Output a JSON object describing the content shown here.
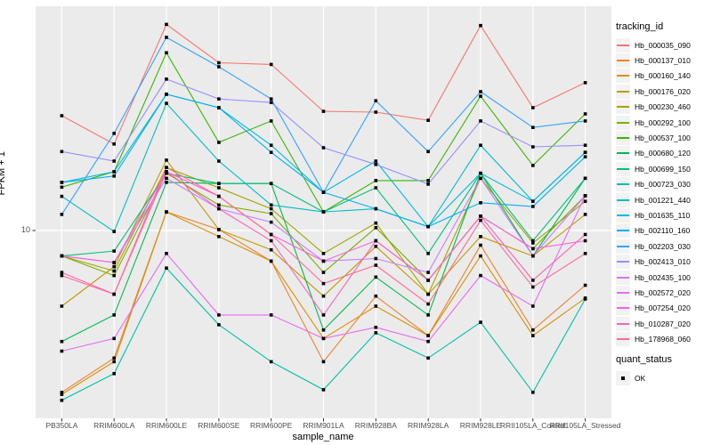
{
  "figure": {
    "y_tick_label": "10",
    "style": {
      "panel_bg": "#EBEBEB",
      "gridline": "#FFFFFF",
      "tick_color": "#333333",
      "tick_text_color": "#4D4D4D",
      "marker_color": "#000000",
      "legend_key_bg": "#F2F2F2"
    }
  },
  "legend": {
    "tracking_title": "tracking_id",
    "quant_title": "quant_status",
    "quant_items": [
      {
        "label": "OK"
      }
    ]
  },
  "chart_data": {
    "type": "line",
    "title": "",
    "xlabel": "sample_name",
    "ylabel": "FPKM + 1",
    "y_scale": "log10",
    "y_ticks": [
      10
    ],
    "ylim": [
      1.6,
      95
    ],
    "grid": "major",
    "marker": "black-square",
    "legend_position": "right",
    "x": [
      "PB350LA",
      "RRIM600LA",
      "RRIM600LE",
      "RRIM600SE",
      "RRIM600PE",
      "RRIM901LA",
      "RRIM928BA",
      "RRIM928LA",
      "RRIM928LE",
      "RRII105LA_Control",
      "RRII105LA_Stressed"
    ],
    "series": [
      {
        "name": "Hb_000035_090",
        "color": "#F8766D",
        "values": [
          32.5,
          24.3,
          83,
          56,
          55,
          34,
          33.7,
          31,
          82,
          35.3,
          45.6
        ]
      },
      {
        "name": "Hb_000137_010",
        "color": "#EA8331",
        "values": [
          1.9,
          2.7,
          12.1,
          10.1,
          7.3,
          2.6,
          5.1,
          3.4,
          8.6,
          3.6,
          5.7
        ]
      },
      {
        "name": "Hb_000160_140",
        "color": "#D89000",
        "values": [
          1.86,
          2.6,
          12.1,
          9.4,
          7.3,
          3.3,
          4.6,
          3.4,
          7.7,
          3.4,
          5.0
        ]
      },
      {
        "name": "Hb_000176_020",
        "color": "#C09B00",
        "values": [
          4.6,
          6.9,
          20.6,
          10.1,
          8.2,
          5.1,
          8.5,
          5.2,
          9.4,
          7.7,
          11.8
        ]
      },
      {
        "name": "Hb_000230_460",
        "color": "#A3A500",
        "values": [
          7.7,
          6.6,
          19.1,
          15.5,
          12.5,
          7.9,
          10.8,
          5.2,
          17.1,
          8.8,
          13.5
        ]
      },
      {
        "name": "Hb_000292_100",
        "color": "#7CAE00",
        "values": [
          7.7,
          6.3,
          18,
          13,
          11.9,
          6.5,
          10.3,
          6,
          11.6,
          8.3,
          14.3
        ]
      },
      {
        "name": "Hb_000537_100",
        "color": "#39B600",
        "values": [
          15.6,
          18.3,
          62,
          24.7,
          30.8,
          12.1,
          16.7,
          16.7,
          39.7,
          19.5,
          33.1
        ]
      },
      {
        "name": "Hb_000680_120",
        "color": "#00BB4E",
        "values": [
          3.2,
          4.2,
          16.4,
          16.2,
          16.2,
          3.6,
          6.2,
          4.2,
          18,
          7.7,
          17.1
        ]
      },
      {
        "name": "Hb_000699_150",
        "color": "#00BF7D",
        "values": [
          7.7,
          8.1,
          18,
          16.2,
          16.2,
          12.1,
          15.5,
          7.9,
          18,
          9,
          17.1
        ]
      },
      {
        "name": "Hb_000723_030",
        "color": "#00C1A3",
        "values": [
          1.75,
          2.3,
          6.8,
          3.8,
          2.6,
          1.95,
          3.5,
          2.7,
          3.9,
          1.9,
          4.95
        ]
      },
      {
        "name": "Hb_001221_440",
        "color": "#00BFC4",
        "values": [
          14.2,
          9.9,
          36.9,
          20.4,
          13,
          12.1,
          12.5,
          10.4,
          24,
          13.5,
          22.3
        ]
      },
      {
        "name": "Hb_001635_110",
        "color": "#00BAE0",
        "values": [
          16.4,
          18.3,
          40.5,
          35.3,
          24,
          14.8,
          20.4,
          10.4,
          18,
          13.5,
          22.3
        ]
      },
      {
        "name": "Hb_002110_160",
        "color": "#00B0F6",
        "values": [
          16.4,
          17.5,
          40.5,
          35.3,
          22.3,
          14.8,
          12.5,
          10.4,
          13.3,
          12.8,
          21.3
        ]
      },
      {
        "name": "Hb_002203_030",
        "color": "#35A2FF",
        "values": [
          11.8,
          27.1,
          72.6,
          53.7,
          38.6,
          14.8,
          37.9,
          22.5,
          41.6,
          28.8,
          30.8
        ]
      },
      {
        "name": "Hb_002413_010",
        "color": "#9590FF",
        "values": [
          22.5,
          20.4,
          47.3,
          38.6,
          37.2,
          23.4,
          19.7,
          16.1,
          30.8,
          23.6,
          24
        ]
      },
      {
        "name": "Hb_002435_100",
        "color": "#C77CFF",
        "values": [
          7.7,
          7.2,
          17.1,
          12.5,
          10.9,
          7.3,
          7.5,
          6.5,
          17.1,
          7.7,
          14.3
        ]
      },
      {
        "name": "Hb_002572_020",
        "color": "#E76BF3",
        "values": [
          2.9,
          3.3,
          7.9,
          4.2,
          4.2,
          3.3,
          3.7,
          3.2,
          6.3,
          4.6,
          14.3
        ]
      },
      {
        "name": "Hb_007254_020",
        "color": "#FA62DB",
        "values": [
          7.7,
          7.2,
          18.3,
          14.2,
          9.6,
          7.3,
          9,
          6,
          11.6,
          8.3,
          9
        ]
      },
      {
        "name": "Hb_010287_020",
        "color": "#FF62BC",
        "values": [
          6.5,
          5.2,
          18.3,
          12.5,
          9,
          4.2,
          9,
          6,
          11.6,
          6,
          9.6
        ]
      },
      {
        "name": "Hb_178968_060",
        "color": "#FF6A98",
        "values": [
          6.3,
          5.2,
          19.1,
          14.2,
          9.6,
          5.8,
          7,
          4.7,
          11.1,
          5.6,
          7.9
        ]
      }
    ]
  }
}
